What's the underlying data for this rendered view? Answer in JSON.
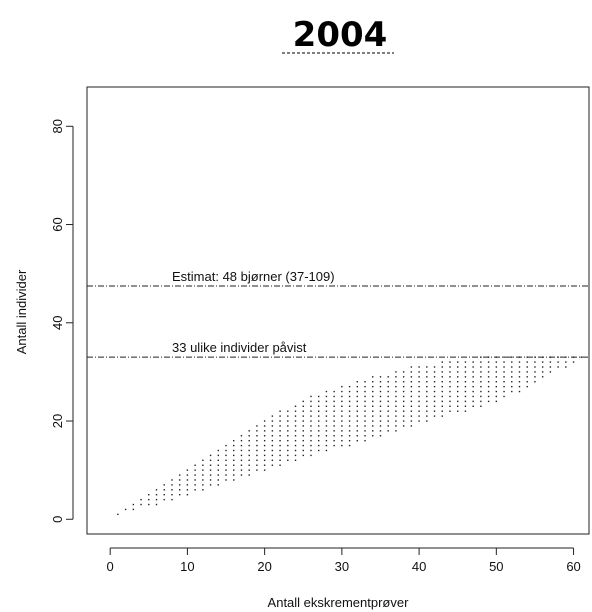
{
  "chart_data": {
    "type": "scatter",
    "title": "2004",
    "xlabel": "Antall ekskrementprøver",
    "ylabel": "Antall individer",
    "xlim": [
      -3,
      62
    ],
    "ylim": [
      -3,
      88
    ],
    "xticks": [
      0,
      10,
      20,
      30,
      40,
      50,
      60
    ],
    "yticks": [
      0,
      20,
      40,
      60,
      80
    ],
    "grid": false,
    "legend": "none",
    "point_color": "#222222",
    "reference_lines": [
      {
        "y": 47.5,
        "label": "Estimat: 48 bjørner (37-109)",
        "style": "dash-dot"
      },
      {
        "y": 33,
        "label": "33 ulike individer påvist",
        "style": "dash-dot"
      }
    ],
    "band": {
      "description_points_x_from": 1,
      "x_to": 61,
      "lower_bound": [
        [
          1,
          1
        ],
        [
          5,
          3
        ],
        [
          10,
          5
        ],
        [
          15,
          8
        ],
        [
          20,
          10
        ],
        [
          25,
          13
        ],
        [
          30,
          15
        ],
        [
          35,
          17
        ],
        [
          40,
          20
        ],
        [
          45,
          22
        ],
        [
          50,
          24
        ],
        [
          55,
          28
        ],
        [
          61,
          33
        ]
      ],
      "upper_bound": [
        [
          1,
          1
        ],
        [
          5,
          5
        ],
        [
          10,
          10
        ],
        [
          15,
          15
        ],
        [
          20,
          20
        ],
        [
          25,
          24
        ],
        [
          30,
          27
        ],
        [
          35,
          29
        ],
        [
          40,
          31
        ],
        [
          45,
          32
        ],
        [
          50,
          33
        ],
        [
          61,
          33
        ]
      ]
    }
  }
}
